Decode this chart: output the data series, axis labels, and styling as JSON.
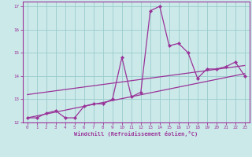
{
  "xlabel": "Windchill (Refroidissement éolien,°C)",
  "bg_color": "#cce9e9",
  "line_color": "#993399",
  "grid_color": "#99cccc",
  "xlim": [
    -0.5,
    23.5
  ],
  "ylim": [
    12.0,
    17.2
  ],
  "yticks": [
    12,
    13,
    14,
    15,
    16,
    17
  ],
  "xticks": [
    0,
    1,
    2,
    3,
    4,
    5,
    6,
    7,
    8,
    9,
    10,
    11,
    12,
    13,
    14,
    15,
    16,
    17,
    18,
    19,
    20,
    21,
    22,
    23
  ],
  "main_series_x": [
    0,
    1,
    2,
    3,
    4,
    5,
    6,
    7,
    8,
    9,
    10,
    11,
    12,
    13,
    14,
    15,
    16,
    17,
    18,
    19,
    20,
    21,
    22,
    23
  ],
  "main_series_y": [
    12.2,
    12.2,
    12.4,
    12.5,
    12.2,
    12.2,
    12.7,
    12.8,
    12.8,
    13.0,
    14.8,
    13.1,
    13.3,
    16.8,
    17.0,
    15.3,
    15.4,
    15.0,
    13.9,
    14.3,
    14.3,
    14.4,
    14.6,
    14.0
  ],
  "trend1_x": [
    0,
    23
  ],
  "trend1_y": [
    12.2,
    14.1
  ],
  "trend2_x": [
    0,
    23
  ],
  "trend2_y": [
    13.2,
    14.45
  ]
}
